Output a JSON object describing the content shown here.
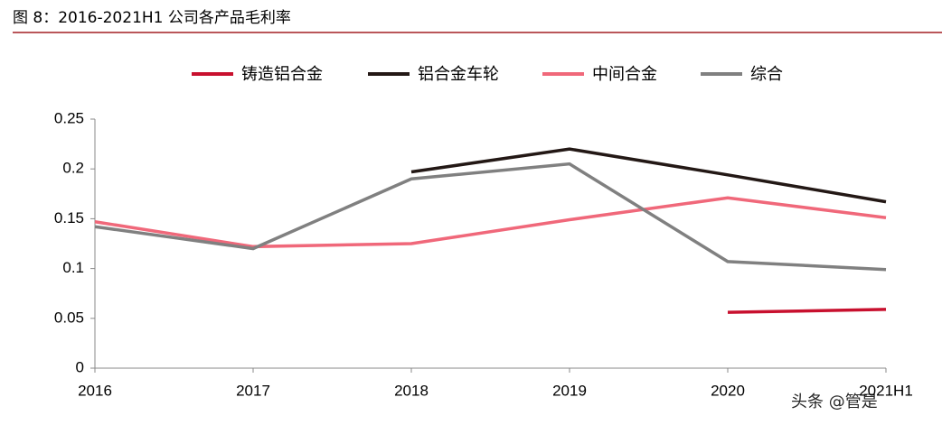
{
  "chart_data": {
    "type": "line",
    "title": "图 8：2016-2021H1 公司各产品毛利率",
    "categories": [
      "2016",
      "2017",
      "2018",
      "2019",
      "2020",
      "2021H1"
    ],
    "series": [
      {
        "name": "铸造铝合金",
        "color": "#c8102e",
        "values": [
          null,
          null,
          null,
          null,
          0.056,
          0.059
        ]
      },
      {
        "name": "铝合金车轮",
        "color": "#231815",
        "values": [
          null,
          null,
          0.197,
          0.22,
          0.194,
          0.167
        ]
      },
      {
        "name": "中间合金",
        "color": "#f0687a",
        "values": [
          0.147,
          0.122,
          0.125,
          0.149,
          0.171,
          0.151
        ]
      },
      {
        "name": "综合",
        "color": "#808080",
        "values": [
          0.142,
          0.12,
          0.19,
          0.205,
          0.107,
          0.099
        ]
      }
    ],
    "ylim": [
      0,
      0.25
    ],
    "yticks": [
      0,
      0.05,
      0.1,
      0.15,
      0.2,
      0.25
    ],
    "grid": false,
    "legend": "top",
    "watermark": "头条 @管是"
  }
}
